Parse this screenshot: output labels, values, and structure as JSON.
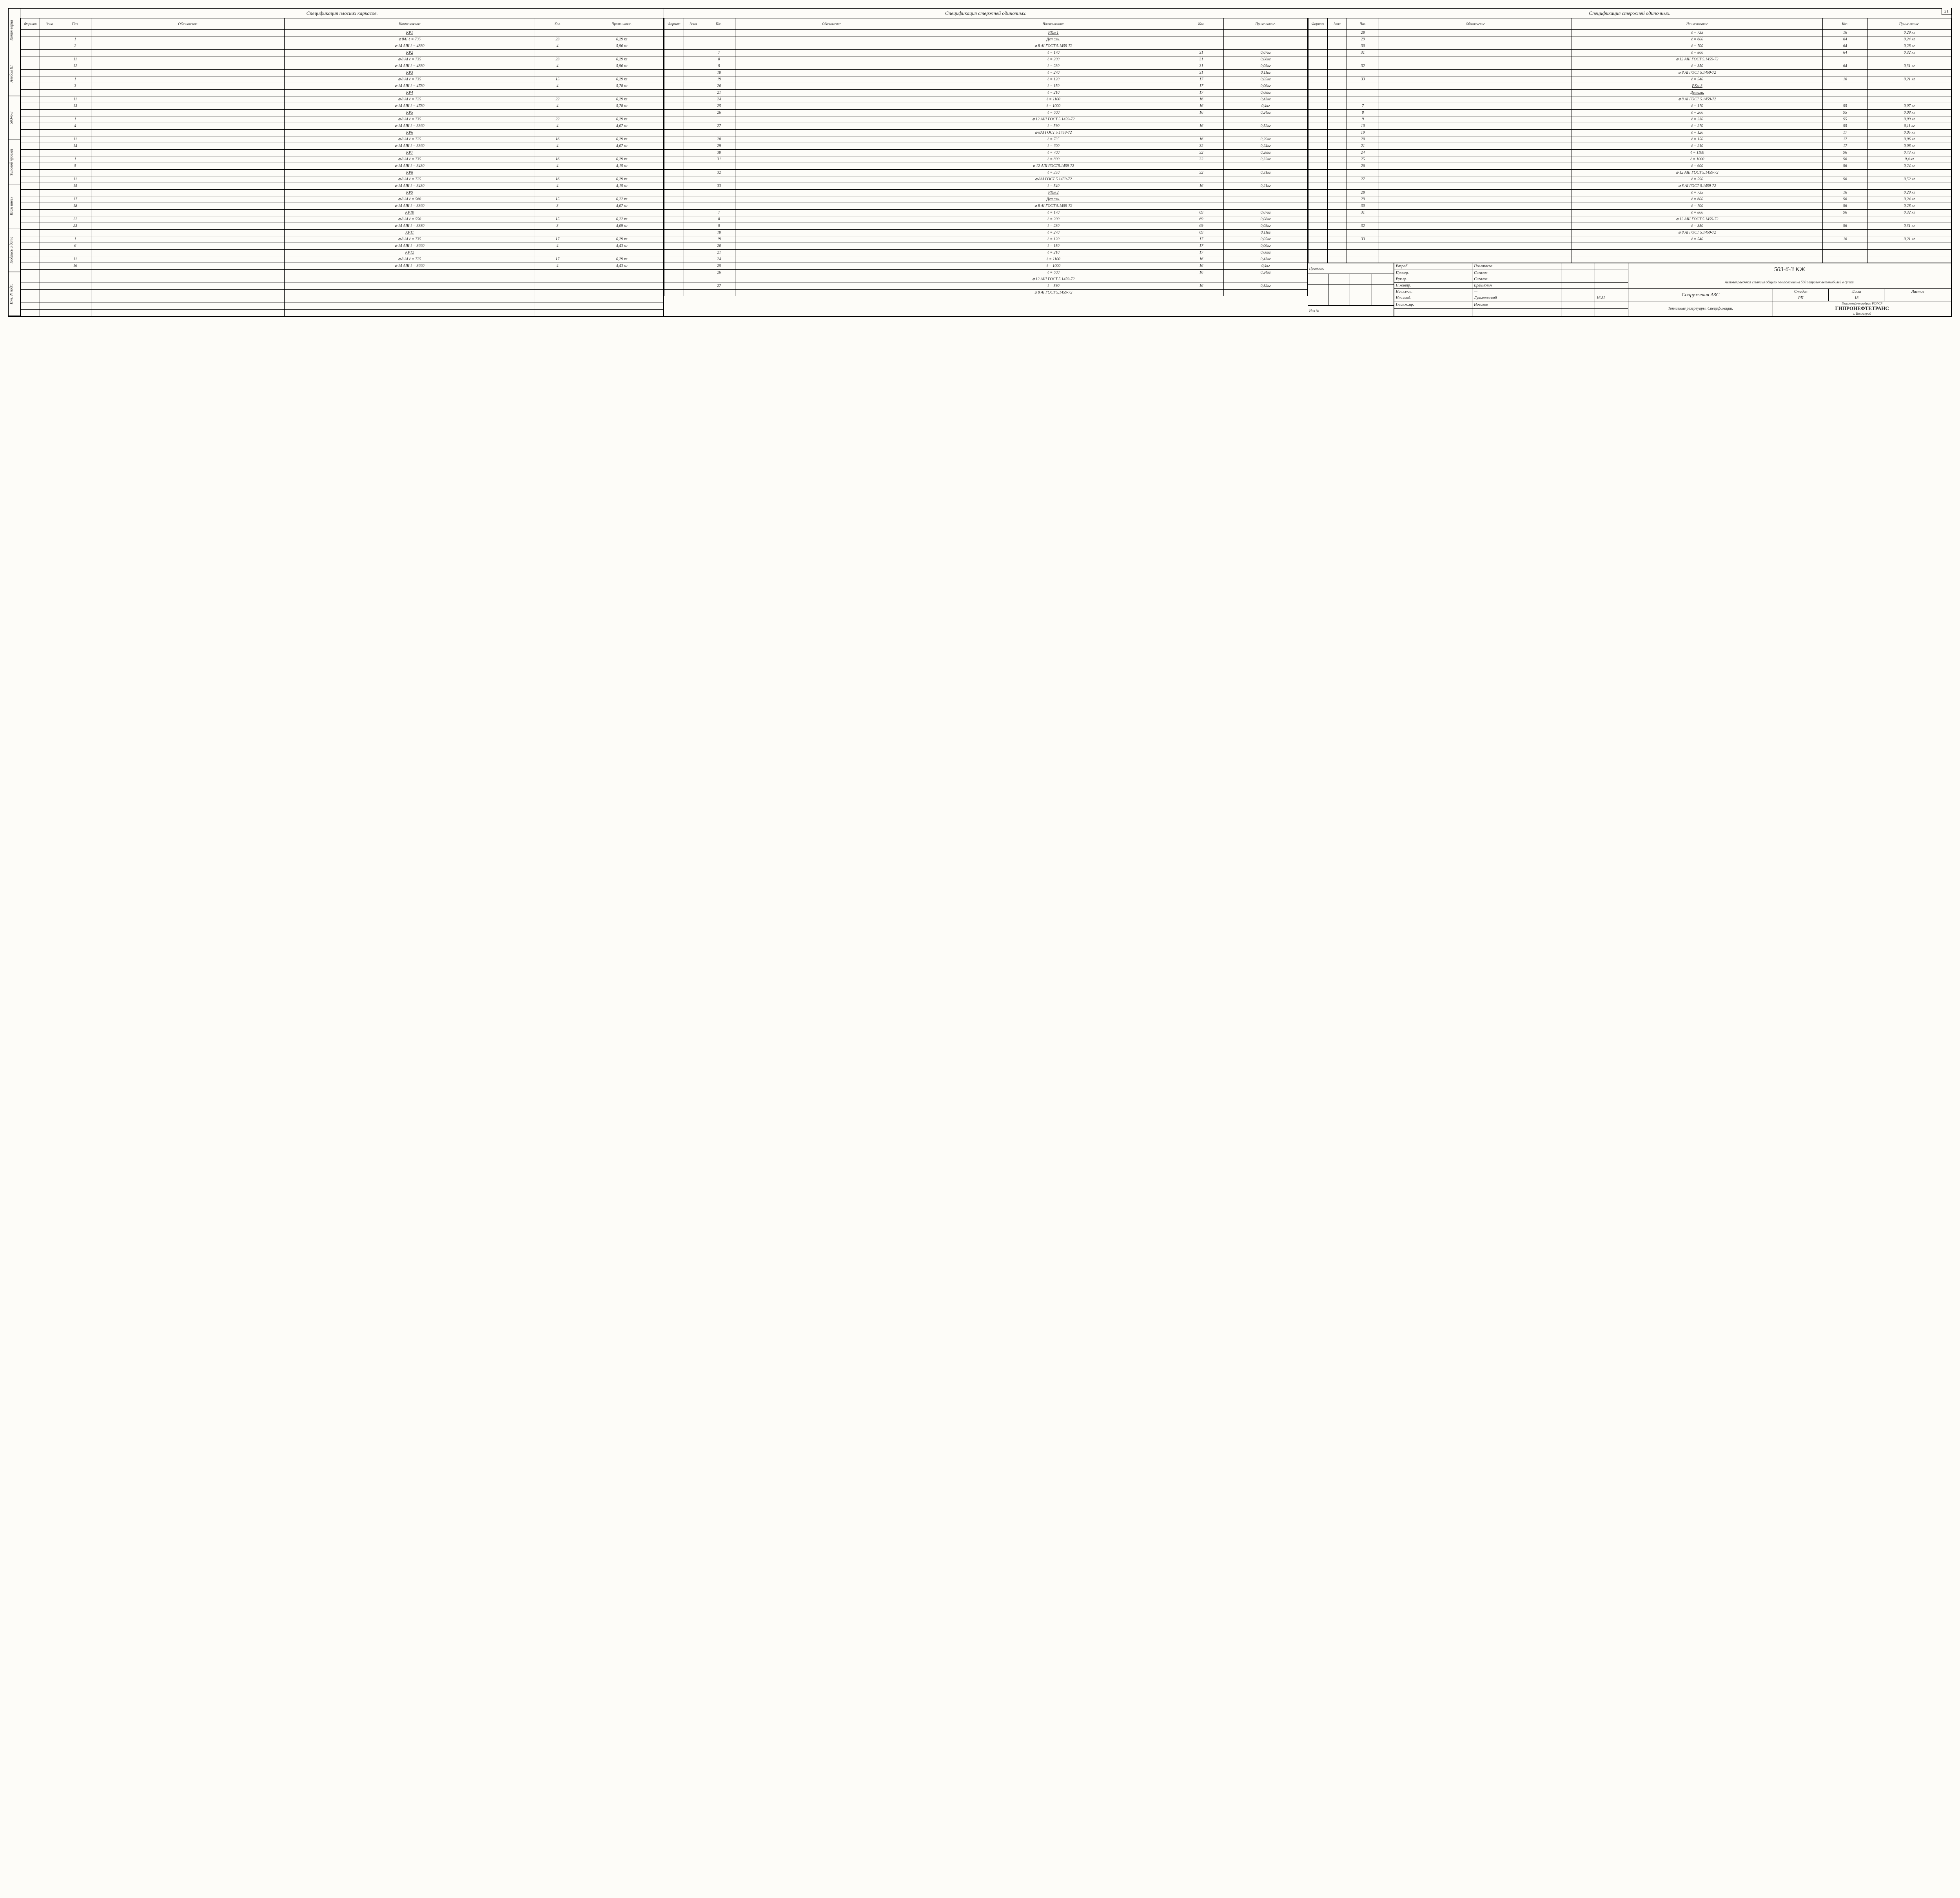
{
  "page_number": "21",
  "left_margin_labels": [
    "Копия верна",
    "Альбом III",
    "503-6-3",
    "Типовой проект",
    "Взам инвен",
    "Подпись и дата",
    "Инв. N подл."
  ],
  "columns": {
    "format": "Формат",
    "zone": "Зона",
    "pos": "Поз.",
    "designation": "Обозначение",
    "name": "Наименование",
    "qty": "Кол.",
    "note": "Приме-чание."
  },
  "spec1": {
    "title": "Спецификация плоских каркасов.",
    "rows": [
      {
        "title": "КР1"
      },
      {
        "pos": "1",
        "name": "⌀ 8АI      ℓ = 735",
        "qty": "23",
        "note": "0,29 кг"
      },
      {
        "pos": "2",
        "name": "⌀ 14 АIII   ℓ = 4880",
        "qty": "4",
        "note": "5,90 кг"
      },
      {
        "title": "КР2"
      },
      {
        "pos": "11",
        "name": "⌀ 8 АI      ℓ = 735",
        "qty": "23",
        "note": "0,29 кг"
      },
      {
        "pos": "12",
        "name": "⌀ 14 АIII   ℓ = 4880",
        "qty": "4",
        "note": "5,90 кг"
      },
      {
        "title": "КР3"
      },
      {
        "pos": "1",
        "name": "⌀ 8 АI      ℓ = 735",
        "qty": "15",
        "note": "0,29 кг"
      },
      {
        "pos": "3",
        "name": "⌀ 14 АIII   ℓ = 4780",
        "qty": "4",
        "note": "5,78 кг"
      },
      {
        "title": "КР4"
      },
      {
        "pos": "11",
        "name": "⌀ 8 АI     ℓ = 725",
        "qty": "22",
        "note": "0,29 кг"
      },
      {
        "pos": "13",
        "name": "⌀ 14 АIII   ℓ = 4780",
        "qty": "4",
        "note": "5,78 кг"
      },
      {
        "title": "КР5"
      },
      {
        "pos": "1",
        "name": "⌀ 8 АI      ℓ = 735",
        "qty": "22",
        "note": "0,29 кг"
      },
      {
        "pos": "4",
        "name": "⌀ 14 АIII   ℓ = 3360",
        "qty": "4",
        "note": "4,07 кг"
      },
      {
        "title": "КР6"
      },
      {
        "pos": "11",
        "name": "⌀ 8 АI      ℓ = 725",
        "qty": "16",
        "note": "0,29 кг"
      },
      {
        "pos": "14",
        "name": "⌀ 14 АIII   ℓ = 3360",
        "qty": "4",
        "note": "4,07 кг"
      },
      {
        "title": "КР7"
      },
      {
        "pos": "1",
        "name": "⌀ 8 АI      ℓ = 735",
        "qty": "16",
        "note": "0,29 кг"
      },
      {
        "pos": "5",
        "name": "⌀ 14 АIII   ℓ = 3430",
        "qty": "4",
        "note": "4,15 кг"
      },
      {
        "title": "КР8"
      },
      {
        "pos": "11",
        "name": "⌀ 8 АI      ℓ = 725",
        "qty": "16",
        "note": "0,29 кг"
      },
      {
        "pos": "15",
        "name": "⌀ 14 АIII   ℓ = 3430",
        "qty": "4",
        "note": "4,15 кг"
      },
      {
        "title": "КР9"
      },
      {
        "pos": "17",
        "name": "⌀ 8 АI      ℓ = 560",
        "qty": "15",
        "note": "0,22 кг"
      },
      {
        "pos": "18",
        "name": "⌀ 14 АIII   ℓ = 3360",
        "qty": "3",
        "note": "4,07 кг"
      },
      {
        "title": "КР10"
      },
      {
        "pos": "22",
        "name": "⌀ 8 АI      ℓ = 550",
        "qty": "15",
        "note": "0,22 кг"
      },
      {
        "pos": "23",
        "name": "⌀ 14 АIII   ℓ = 3380",
        "qty": "3",
        "note": "4,09 кг"
      },
      {
        "title": "КР11"
      },
      {
        "pos": "1",
        "name": "⌀ 8 АI      ℓ = 735",
        "qty": "17",
        "note": "0,29 кг"
      },
      {
        "pos": "6",
        "name": "⌀ 14 АIII   ℓ = 3660",
        "qty": "4",
        "note": "4,43 кг"
      },
      {
        "title": "КР12"
      },
      {
        "pos": "11",
        "name": "⌀ 8 АI      ℓ = 725",
        "qty": "17",
        "note": "0,29 кг"
      },
      {
        "pos": "16",
        "name": "⌀ 14 АIII   ℓ = 3660",
        "qty": "4",
        "note": "4,43 кг"
      },
      {},
      {},
      {},
      {},
      {},
      {},
      {}
    ]
  },
  "spec2": {
    "title": "Спецификация стержней одиночных.",
    "rows": [
      {
        "title": "РКм 1"
      },
      {
        "titleName": "Детали."
      },
      {
        "name": "⌀ 8 АI ГОСТ 5.1459-72"
      },
      {
        "pos": "7",
        "name": "ℓ = 170",
        "qty": "31",
        "note": "0,07кг"
      },
      {
        "pos": "8",
        "name": "ℓ = 200",
        "qty": "31",
        "note": "0,08кг"
      },
      {
        "pos": "9",
        "name": "ℓ = 230",
        "qty": "31",
        "note": "0,09кг"
      },
      {
        "pos": "10",
        "name": "ℓ = 270",
        "qty": "31",
        "note": "0,11кг"
      },
      {
        "pos": "19",
        "name": "ℓ = 120",
        "qty": "17",
        "note": "0,05кг"
      },
      {
        "pos": "20",
        "name": "ℓ = 150",
        "qty": "17",
        "note": "0,06кг"
      },
      {
        "pos": "21",
        "name": "ℓ = 210",
        "qty": "17",
        "note": "0,08кг"
      },
      {
        "pos": "24",
        "name": "ℓ = 1100",
        "qty": "16",
        "note": "0,43кг"
      },
      {
        "pos": "25",
        "name": "ℓ = 1000",
        "qty": "16",
        "note": "0,4кг"
      },
      {
        "pos": "26",
        "name": "ℓ = 600",
        "qty": "16",
        "note": "0,24кг"
      },
      {
        "name": "⌀ 12 АIII ГОСТ 5.1459-72"
      },
      {
        "pos": "27",
        "name": "ℓ = 590",
        "qty": "16",
        "note": "0,52кг"
      },
      {
        "name": "⌀ 8АI  ГОСТ 5.1459-72"
      },
      {
        "pos": "28",
        "name": "ℓ = 735",
        "qty": "16",
        "note": "0,29кг"
      },
      {
        "pos": "29",
        "name": "ℓ = 600",
        "qty": "32",
        "note": "0,24кг"
      },
      {
        "pos": "30",
        "name": "ℓ = 700",
        "qty": "32",
        "note": "0,28кг"
      },
      {
        "pos": "31",
        "name": "ℓ = 800",
        "qty": "32",
        "note": "0,32кг"
      },
      {
        "name": "⌀ 12 АIII ГОСТ5.1459-72"
      },
      {
        "pos": "32",
        "name": "ℓ = 350",
        "qty": "32",
        "note": "0,31кг"
      },
      {
        "name": "⌀ 8АI  ГОСТ 5.1459-72"
      },
      {
        "pos": "33",
        "name": "ℓ = 540",
        "qty": "16",
        "note": "0,21кг"
      },
      {
        "title": "РКм 2"
      },
      {
        "titleName": "Детали."
      },
      {
        "name": "⌀ 8 АI  ГОСТ 5.1459-72"
      },
      {
        "pos": "7",
        "name": "ℓ = 170",
        "qty": "69",
        "note": "0,07кг"
      },
      {
        "pos": "8",
        "name": "ℓ = 200",
        "qty": "69",
        "note": "0,08кг"
      },
      {
        "pos": "9",
        "name": "ℓ = 230",
        "qty": "69",
        "note": "0,09кг"
      },
      {
        "pos": "10",
        "name": "ℓ = 270",
        "qty": "69",
        "note": "0,11кг"
      },
      {
        "pos": "19",
        "name": "ℓ = 120",
        "qty": "17",
        "note": "0,05кг"
      },
      {
        "pos": "20",
        "name": "ℓ = 150",
        "qty": "17",
        "note": "0,06кг"
      },
      {
        "pos": "21",
        "name": "ℓ = 210",
        "qty": "17",
        "note": "0,08кг"
      },
      {
        "pos": "24",
        "name": "ℓ = 1100",
        "qty": "16",
        "note": "0,43кг"
      },
      {
        "pos": "25",
        "name": "ℓ = 1000",
        "qty": "16",
        "note": "0,4кг"
      },
      {
        "pos": "26",
        "name": "ℓ = 600",
        "qty": "16",
        "note": "0,24кг"
      },
      {
        "name": "⌀ 12 АIII ГОСТ 5.1459-72"
      },
      {
        "pos": "27",
        "name": "ℓ = 590",
        "qty": "16",
        "note": "0,52кг"
      },
      {
        "name": "⌀ 8 АI  ГОСТ 5.1459-72"
      }
    ]
  },
  "spec3": {
    "title": "Спецификация стержней одиночных.",
    "rows": [
      {
        "pos": "28",
        "name": "ℓ = 735",
        "qty": "16",
        "note": "0,29 кг"
      },
      {
        "pos": "29",
        "name": "ℓ = 600",
        "qty": "64",
        "note": "0,24 кг"
      },
      {
        "pos": "30",
        "name": "ℓ = 700",
        "qty": "64",
        "note": "0,28 кг"
      },
      {
        "pos": "31",
        "name": "ℓ = 800",
        "qty": "64",
        "note": "0,32 кг"
      },
      {
        "name": "⌀ 12 АIII ГОСТ 5.1459-72"
      },
      {
        "pos": "32",
        "name": "ℓ = 350",
        "qty": "64",
        "note": "0,31 кг"
      },
      {
        "name": "⌀ 8 АI  ГОСТ 5.1459-72"
      },
      {
        "pos": "33",
        "name": "ℓ = 540",
        "qty": "16",
        "note": "0,21 кг"
      },
      {
        "title": "РКм 3"
      },
      {
        "titleName": "Детали."
      },
      {
        "name": "⌀ 8 АI  ГОСТ 5.1459-72"
      },
      {
        "pos": "7",
        "name": "ℓ = 170",
        "qty": "95",
        "note": "0,07 кг"
      },
      {
        "pos": "8",
        "name": "ℓ = 200",
        "qty": "95",
        "note": "0,08 кг"
      },
      {
        "pos": "9",
        "name": "ℓ = 230",
        "qty": "95",
        "note": "0,09 кг"
      },
      {
        "pos": "10",
        "name": "ℓ = 270",
        "qty": "95",
        "note": "0,11 кг"
      },
      {
        "pos": "19",
        "name": "ℓ = 120",
        "qty": "17",
        "note": "0,05 кг"
      },
      {
        "pos": "20",
        "name": "ℓ = 150",
        "qty": "17",
        "note": "0,06 кг"
      },
      {
        "pos": "21",
        "name": "ℓ = 210",
        "qty": "17",
        "note": "0,08 кг"
      },
      {
        "pos": "24",
        "name": "ℓ = 1100",
        "qty": "96",
        "note": "0,43 кг"
      },
      {
        "pos": "25",
        "name": "ℓ = 1000",
        "qty": "96",
        "note": "0,4 кг"
      },
      {
        "pos": "26",
        "name": "ℓ = 600",
        "qty": "96",
        "note": "0,24 кг"
      },
      {
        "name": "⌀ 12 АIII ГОСТ 5.1459-72"
      },
      {
        "pos": "27",
        "name": "ℓ = 590",
        "qty": "96",
        "note": "0,52 кг"
      },
      {
        "name": "⌀ 8 АI  ГОСТ 5.1459-72"
      },
      {
        "pos": "28",
        "name": "ℓ = 735",
        "qty": "16",
        "note": "0,29 кг"
      },
      {
        "pos": "29",
        "name": "ℓ = 600",
        "qty": "96",
        "note": "0,24 кг"
      },
      {
        "pos": "30",
        "name": "ℓ = 700",
        "qty": "96",
        "note": "0,28 кг"
      },
      {
        "pos": "31",
        "name": "ℓ = 800",
        "qty": "96",
        "note": "0,32 кг"
      },
      {
        "name": "⌀ 12 АIII ГОСТ 5.1459-72"
      },
      {
        "pos": "32",
        "name": "ℓ = 350",
        "qty": "96",
        "note": "0,31 кг"
      },
      {
        "name": "⌀ 8 АI  ГОСТ 5.1459-72"
      },
      {
        "pos": "33",
        "name": "ℓ = 540",
        "qty": "16",
        "note": "0,21 кг"
      },
      {},
      {},
      {}
    ]
  },
  "binding": {
    "label": "Привязан:",
    "inv": "Инв №"
  },
  "stamp": {
    "roles": [
      [
        "Разраб.",
        "Полетаева"
      ],
      [
        "Провер.",
        "Сигалов"
      ],
      [
        "Рук.гр.",
        "Сигалов"
      ],
      [
        "Н.контр.",
        "Враймович"
      ],
      [
        "Нач.сект.",
        "—"
      ],
      [
        "Нач.отд.",
        "Лукьяновский"
      ],
      [
        "Гл.инж.пр.",
        "Новиков"
      ]
    ],
    "date": "16.82",
    "code": "503-6-3        КЖ",
    "title1": "Автозаправочная станция общего пользования на 500 заправок автомобилей в сутки.",
    "title2": "Сооружения АЗС",
    "title3": "Топливные резервуары. Спецификации.",
    "stage_h": "Стадия",
    "sheet_h": "Лист",
    "sheets_h": "Листов",
    "stage": "РП",
    "sheet": "18",
    "sheets": "",
    "org1": "Госкомнефтепродукт РСФСР",
    "org2": "ГИПРОНЕФТЕТРАНС",
    "org3": "г. Волгоград"
  }
}
